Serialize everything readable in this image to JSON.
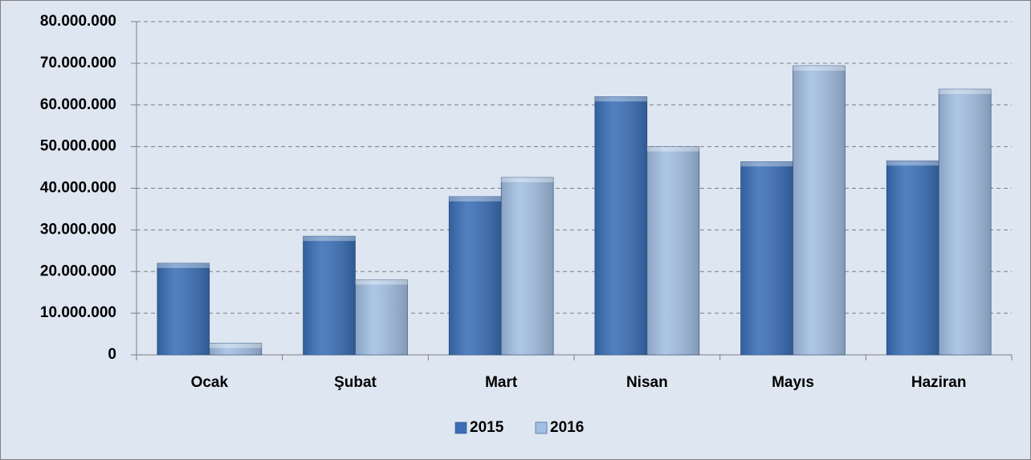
{
  "chart_data": {
    "type": "bar",
    "categories": [
      "Ocak",
      "Şubat",
      "Mart",
      "Nisan",
      "Mayıs",
      "Haziran"
    ],
    "series": [
      {
        "name": "2015",
        "color": "#3a6fb7",
        "values": [
          22000000,
          28500000,
          38000000,
          62000000,
          46400000,
          46600000
        ]
      },
      {
        "name": "2016",
        "color": "#a3bfe3",
        "values": [
          2800000,
          18000000,
          42600000,
          50000000,
          69400000,
          63800000
        ]
      }
    ],
    "ylim": [
      0,
      80000000
    ],
    "yticks": [
      0,
      {
        "value": 10000000,
        "label": "10.000.000"
      },
      {
        "value": 20000000,
        "label": "20.000.000"
      },
      {
        "value": 30000000,
        "label": "30.000.000"
      },
      {
        "value": 40000000,
        "label": "40.000.000"
      },
      {
        "value": 50000000,
        "label": "50.000.000"
      },
      {
        "value": 60000000,
        "label": "60.000.000"
      },
      {
        "value": 70000000,
        "label": "70.000.000"
      },
      {
        "value": 80000000,
        "label": "80.000.000"
      }
    ],
    "grid": true,
    "legend": "bottom"
  }
}
